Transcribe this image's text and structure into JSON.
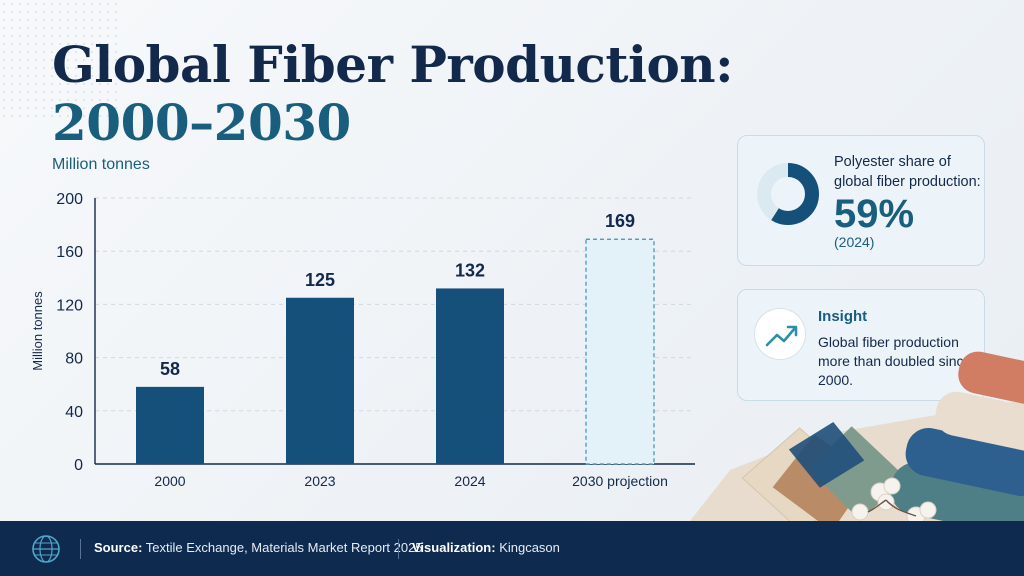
{
  "title_line1": "Global Fiber Production:",
  "title_line2": "2000–2030",
  "units_label": "Million tonnes",
  "chart_data": {
    "type": "bar",
    "categories": [
      "2000",
      "2023",
      "2024",
      "2030 projection"
    ],
    "values": [
      58,
      125,
      132,
      169
    ],
    "projected": [
      false,
      false,
      false,
      true
    ],
    "title": "Global Fiber Production: 2000–2030",
    "subtitle": "Million tonnes",
    "xlabel": "",
    "ylabel": "Million tonnes",
    "ylim": [
      0,
      200
    ],
    "yticks": [
      0,
      40,
      80,
      120,
      160,
      200
    ],
    "grid": true,
    "colors": {
      "bar": "#14507a",
      "projection_fill": "#e3f1f8",
      "projection_stroke": "#3e8fb6"
    }
  },
  "polyester_card": {
    "label": "Polyester share of global fiber production:",
    "value": "59%",
    "share": 59,
    "year": "(2024)",
    "colors": {
      "main": "#14507a",
      "rest": "#dbe9f1"
    }
  },
  "insight_card": {
    "heading": "Insight",
    "text": "Global fiber production more than doubled since 2000.",
    "icon": "trend-up-icon"
  },
  "footer": {
    "source_label": "Source:",
    "source_text": "Textile Exchange, Materials Market Report 2025",
    "viz_label": "Visualization:",
    "viz_text": "Kingcason"
  }
}
